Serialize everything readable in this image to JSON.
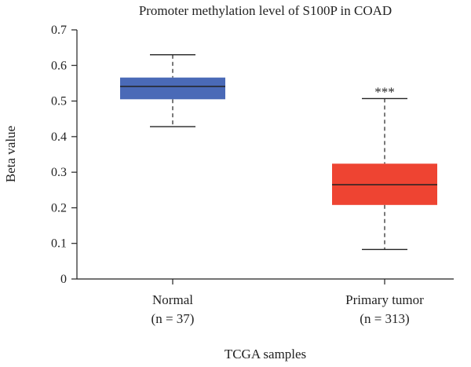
{
  "chart_data": {
    "type": "box",
    "title": "Promoter methylation level of S100P in COAD",
    "xlabel": "TCGA samples",
    "ylabel": "Beta value",
    "ylim": [
      0,
      0.7
    ],
    "yticks": [
      0,
      0.1,
      0.2,
      0.3,
      0.4,
      0.5,
      0.6,
      0.7
    ],
    "ytick_labels": [
      "0",
      "0.1",
      "0.2",
      "0.3",
      "0.4",
      "0.5",
      "0.6",
      "0.7"
    ],
    "grid": false,
    "categories": [
      "Normal",
      "Primary tumor"
    ],
    "boxes": [
      {
        "category": "Normal",
        "n_label": "(n = 37)",
        "min": 0.428,
        "q1": 0.505,
        "median": 0.541,
        "q3": 0.566,
        "max": 0.63,
        "color": "#4a6ab7"
      },
      {
        "category": "Primary tumor",
        "n_label": "(n = 313)",
        "min": 0.083,
        "q1": 0.208,
        "median": 0.265,
        "q3": 0.324,
        "max": 0.507,
        "color": "#ee4432",
        "annotation": "***"
      }
    ]
  }
}
